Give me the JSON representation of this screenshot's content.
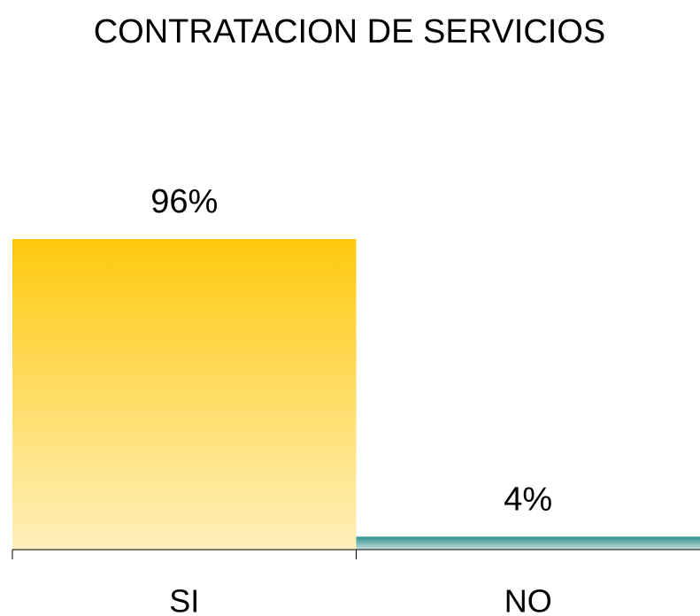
{
  "chart_data": {
    "type": "bar",
    "title": "CONTRATACION DE SERVICIOS",
    "categories": [
      "SI",
      "NO"
    ],
    "values": [
      96,
      4
    ],
    "value_labels": [
      "96%",
      "4%"
    ],
    "colors": [
      "#ffc90e",
      "#2f8f8f"
    ],
    "ylim": [
      0,
      100
    ]
  }
}
